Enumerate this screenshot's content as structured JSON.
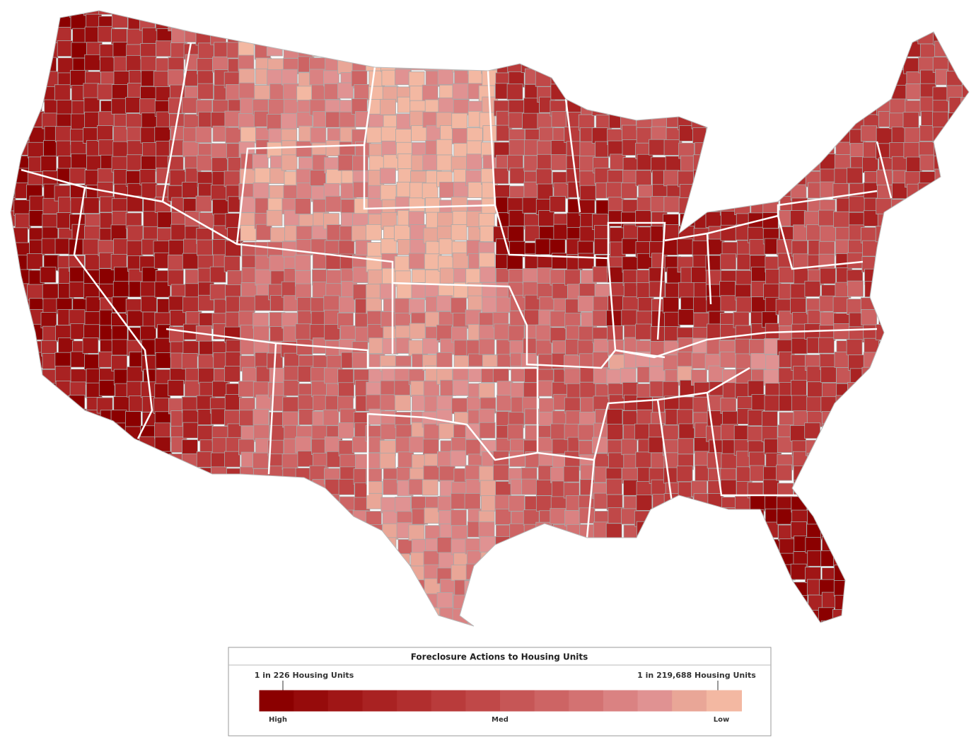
{
  "legend": {
    "title": "Foreclosure Actions to Housing Units",
    "high_label": "1 in 226 Housing Units",
    "low_label": "1 in 219,688 Housing Units",
    "scale_labels": [
      "High",
      "Med",
      "Low"
    ],
    "colors": [
      "#8b0000",
      "#960b0b",
      "#a01616",
      "#a92222",
      "#b12e2e",
      "#b93b3b",
      "#c04848",
      "#c65656",
      "#cd6464",
      "#d37272",
      "#da8282",
      "#e09292",
      "#e9a697",
      "#f3b8a2"
    ]
  }
}
